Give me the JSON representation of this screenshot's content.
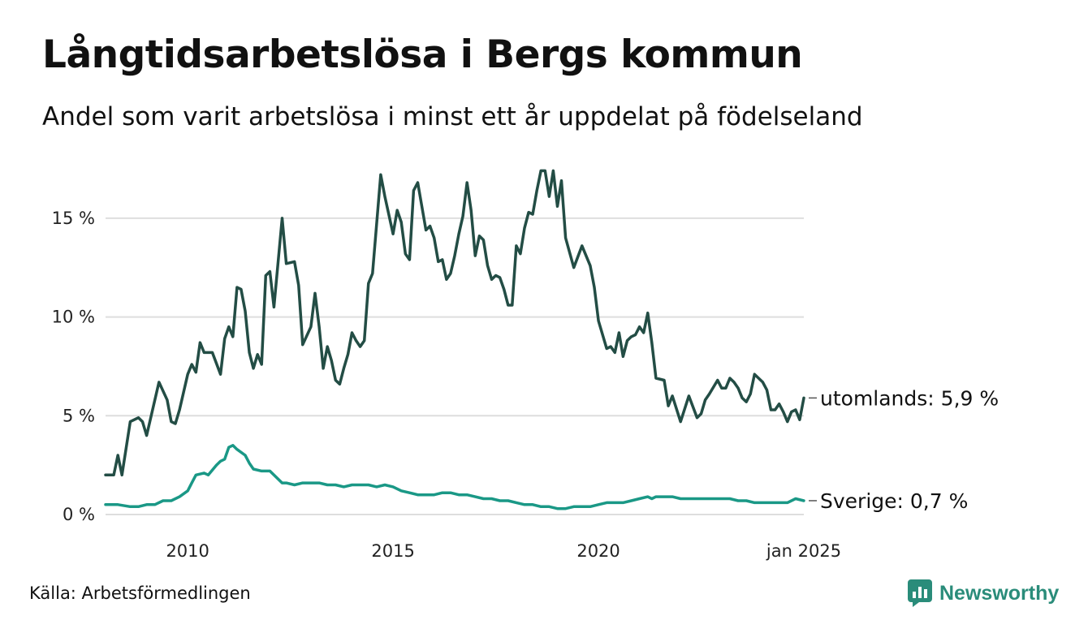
{
  "title": "Långtidsarbetslösa i Bergs kommun",
  "subtitle": "Andel som varit arbetslösa i minst ett år uppdelat på födelseland",
  "source": "Källa: Arbetsförmedlingen",
  "brand": {
    "name": "Newsworthy",
    "logo_icon": "newsworthy-logo-icon",
    "color": "#2a8c7a"
  },
  "chart_data": {
    "type": "line",
    "y_ticks": [
      {
        "value": 0,
        "label": "0 %"
      },
      {
        "value": 5,
        "label": "5 %"
      },
      {
        "value": 10,
        "label": "10 %"
      },
      {
        "value": 15,
        "label": "15 %"
      }
    ],
    "x_ticks": [
      {
        "value": 2010,
        "label": "2010"
      },
      {
        "value": 2015,
        "label": "2015"
      },
      {
        "value": 2020,
        "label": "2020"
      },
      {
        "value": 2025,
        "label": "jan 2025"
      }
    ],
    "xlim": [
      2008.0,
      2025.0
    ],
    "ylim": [
      0,
      17.5
    ],
    "grid": true,
    "series": [
      {
        "name": "utomlands",
        "end_label": "utomlands: 5,9 %",
        "color": "#234d45",
        "points": [
          [
            2008.0,
            2.0
          ],
          [
            2008.2,
            2.0
          ],
          [
            2008.3,
            3.0
          ],
          [
            2008.4,
            2.0
          ],
          [
            2008.6,
            4.7
          ],
          [
            2008.8,
            4.9
          ],
          [
            2008.9,
            4.7
          ],
          [
            2009.0,
            4.0
          ],
          [
            2009.3,
            6.7
          ],
          [
            2009.5,
            5.8
          ],
          [
            2009.6,
            4.7
          ],
          [
            2009.7,
            4.6
          ],
          [
            2009.8,
            5.3
          ],
          [
            2010.0,
            7.1
          ],
          [
            2010.1,
            7.6
          ],
          [
            2010.2,
            7.2
          ],
          [
            2010.3,
            8.7
          ],
          [
            2010.4,
            8.2
          ],
          [
            2010.6,
            8.2
          ],
          [
            2010.8,
            7.1
          ],
          [
            2010.9,
            8.9
          ],
          [
            2011.0,
            9.5
          ],
          [
            2011.1,
            9.0
          ],
          [
            2011.2,
            11.5
          ],
          [
            2011.3,
            11.4
          ],
          [
            2011.4,
            10.3
          ],
          [
            2011.5,
            8.2
          ],
          [
            2011.6,
            7.4
          ],
          [
            2011.7,
            8.1
          ],
          [
            2011.8,
            7.6
          ],
          [
            2011.9,
            12.1
          ],
          [
            2012.0,
            12.3
          ],
          [
            2012.1,
            10.5
          ],
          [
            2012.3,
            15.0
          ],
          [
            2012.4,
            12.7
          ],
          [
            2012.6,
            12.8
          ],
          [
            2012.7,
            11.6
          ],
          [
            2012.8,
            8.6
          ],
          [
            2013.0,
            9.5
          ],
          [
            2013.1,
            11.2
          ],
          [
            2013.2,
            9.5
          ],
          [
            2013.3,
            7.4
          ],
          [
            2013.4,
            8.5
          ],
          [
            2013.5,
            7.8
          ],
          [
            2013.6,
            6.8
          ],
          [
            2013.7,
            6.6
          ],
          [
            2013.8,
            7.4
          ],
          [
            2013.9,
            8.1
          ],
          [
            2014.0,
            9.2
          ],
          [
            2014.1,
            8.8
          ],
          [
            2014.2,
            8.5
          ],
          [
            2014.3,
            8.8
          ],
          [
            2014.4,
            11.7
          ],
          [
            2014.5,
            12.2
          ],
          [
            2014.7,
            17.2
          ],
          [
            2014.8,
            16.1
          ],
          [
            2015.0,
            14.2
          ],
          [
            2015.1,
            15.4
          ],
          [
            2015.2,
            14.8
          ],
          [
            2015.3,
            13.2
          ],
          [
            2015.4,
            12.9
          ],
          [
            2015.5,
            16.4
          ],
          [
            2015.6,
            16.8
          ],
          [
            2015.8,
            14.4
          ],
          [
            2015.9,
            14.6
          ],
          [
            2016.0,
            14.0
          ],
          [
            2016.1,
            12.8
          ],
          [
            2016.2,
            12.9
          ],
          [
            2016.3,
            11.9
          ],
          [
            2016.4,
            12.2
          ],
          [
            2016.5,
            13.1
          ],
          [
            2016.6,
            14.2
          ],
          [
            2016.7,
            15.1
          ],
          [
            2016.8,
            16.8
          ],
          [
            2016.9,
            15.4
          ],
          [
            2017.0,
            13.1
          ],
          [
            2017.1,
            14.1
          ],
          [
            2017.2,
            13.9
          ],
          [
            2017.3,
            12.6
          ],
          [
            2017.4,
            11.9
          ],
          [
            2017.5,
            12.1
          ],
          [
            2017.6,
            12.0
          ],
          [
            2017.7,
            11.4
          ],
          [
            2017.8,
            10.6
          ],
          [
            2017.9,
            10.6
          ],
          [
            2018.0,
            13.6
          ],
          [
            2018.1,
            13.2
          ],
          [
            2018.2,
            14.5
          ],
          [
            2018.3,
            15.3
          ],
          [
            2018.4,
            15.2
          ],
          [
            2018.5,
            16.4
          ],
          [
            2018.6,
            17.4
          ],
          [
            2018.7,
            17.4
          ],
          [
            2018.8,
            16.1
          ],
          [
            2018.9,
            17.4
          ],
          [
            2019.0,
            15.6
          ],
          [
            2019.1,
            16.9
          ],
          [
            2019.2,
            14.0
          ],
          [
            2019.4,
            12.5
          ],
          [
            2019.6,
            13.6
          ],
          [
            2019.8,
            12.6
          ],
          [
            2019.9,
            11.5
          ],
          [
            2020.0,
            9.8
          ],
          [
            2020.2,
            8.4
          ],
          [
            2020.3,
            8.5
          ],
          [
            2020.4,
            8.2
          ],
          [
            2020.5,
            9.2
          ],
          [
            2020.6,
            8.0
          ],
          [
            2020.7,
            8.8
          ],
          [
            2020.8,
            9.0
          ],
          [
            2020.9,
            9.1
          ],
          [
            2021.0,
            9.5
          ],
          [
            2021.1,
            9.2
          ],
          [
            2021.2,
            10.2
          ],
          [
            2021.3,
            8.7
          ],
          [
            2021.4,
            6.9
          ],
          [
            2021.6,
            6.8
          ],
          [
            2021.7,
            5.5
          ],
          [
            2021.8,
            6.0
          ],
          [
            2022.0,
            4.7
          ],
          [
            2022.2,
            6.0
          ],
          [
            2022.4,
            4.9
          ],
          [
            2022.5,
            5.1
          ],
          [
            2022.6,
            5.8
          ],
          [
            2022.7,
            6.1
          ],
          [
            2022.9,
            6.8
          ],
          [
            2023.0,
            6.4
          ],
          [
            2023.1,
            6.4
          ],
          [
            2023.2,
            6.9
          ],
          [
            2023.3,
            6.7
          ],
          [
            2023.4,
            6.4
          ],
          [
            2023.5,
            5.9
          ],
          [
            2023.6,
            5.7
          ],
          [
            2023.7,
            6.1
          ],
          [
            2023.8,
            7.1
          ],
          [
            2024.0,
            6.7
          ],
          [
            2024.1,
            6.3
          ],
          [
            2024.2,
            5.3
          ],
          [
            2024.3,
            5.3
          ],
          [
            2024.4,
            5.6
          ],
          [
            2024.5,
            5.2
          ],
          [
            2024.6,
            4.7
          ],
          [
            2024.7,
            5.2
          ],
          [
            2024.8,
            5.3
          ],
          [
            2024.9,
            4.8
          ],
          [
            2025.0,
            5.9
          ]
        ]
      },
      {
        "name": "Sverige",
        "end_label": "Sverige: 0,7 %",
        "color": "#1a9886",
        "points": [
          [
            2008.0,
            0.5
          ],
          [
            2008.3,
            0.5
          ],
          [
            2008.6,
            0.4
          ],
          [
            2008.8,
            0.4
          ],
          [
            2009.0,
            0.5
          ],
          [
            2009.2,
            0.5
          ],
          [
            2009.4,
            0.7
          ],
          [
            2009.6,
            0.7
          ],
          [
            2009.8,
            0.9
          ],
          [
            2010.0,
            1.2
          ],
          [
            2010.1,
            1.6
          ],
          [
            2010.2,
            2.0
          ],
          [
            2010.4,
            2.1
          ],
          [
            2010.5,
            2.0
          ],
          [
            2010.7,
            2.5
          ],
          [
            2010.8,
            2.7
          ],
          [
            2010.9,
            2.8
          ],
          [
            2011.0,
            3.4
          ],
          [
            2011.1,
            3.5
          ],
          [
            2011.2,
            3.3
          ],
          [
            2011.4,
            3.0
          ],
          [
            2011.5,
            2.6
          ],
          [
            2011.6,
            2.3
          ],
          [
            2011.8,
            2.2
          ],
          [
            2012.0,
            2.2
          ],
          [
            2012.1,
            2.0
          ],
          [
            2012.3,
            1.6
          ],
          [
            2012.4,
            1.6
          ],
          [
            2012.6,
            1.5
          ],
          [
            2012.8,
            1.6
          ],
          [
            2013.0,
            1.6
          ],
          [
            2013.2,
            1.6
          ],
          [
            2013.4,
            1.5
          ],
          [
            2013.6,
            1.5
          ],
          [
            2013.8,
            1.4
          ],
          [
            2014.0,
            1.5
          ],
          [
            2014.2,
            1.5
          ],
          [
            2014.4,
            1.5
          ],
          [
            2014.6,
            1.4
          ],
          [
            2014.8,
            1.5
          ],
          [
            2015.0,
            1.4
          ],
          [
            2015.2,
            1.2
          ],
          [
            2015.4,
            1.1
          ],
          [
            2015.6,
            1.0
          ],
          [
            2015.8,
            1.0
          ],
          [
            2016.0,
            1.0
          ],
          [
            2016.2,
            1.1
          ],
          [
            2016.4,
            1.1
          ],
          [
            2016.6,
            1.0
          ],
          [
            2016.8,
            1.0
          ],
          [
            2017.0,
            0.9
          ],
          [
            2017.2,
            0.8
          ],
          [
            2017.4,
            0.8
          ],
          [
            2017.6,
            0.7
          ],
          [
            2017.8,
            0.7
          ],
          [
            2018.0,
            0.6
          ],
          [
            2018.2,
            0.5
          ],
          [
            2018.4,
            0.5
          ],
          [
            2018.6,
            0.4
          ],
          [
            2018.8,
            0.4
          ],
          [
            2019.0,
            0.3
          ],
          [
            2019.2,
            0.3
          ],
          [
            2019.4,
            0.4
          ],
          [
            2019.6,
            0.4
          ],
          [
            2019.8,
            0.4
          ],
          [
            2020.0,
            0.5
          ],
          [
            2020.2,
            0.6
          ],
          [
            2020.4,
            0.6
          ],
          [
            2020.6,
            0.6
          ],
          [
            2020.8,
            0.7
          ],
          [
            2021.0,
            0.8
          ],
          [
            2021.2,
            0.9
          ],
          [
            2021.3,
            0.8
          ],
          [
            2021.4,
            0.9
          ],
          [
            2021.6,
            0.9
          ],
          [
            2021.8,
            0.9
          ],
          [
            2022.0,
            0.8
          ],
          [
            2022.2,
            0.8
          ],
          [
            2022.4,
            0.8
          ],
          [
            2022.6,
            0.8
          ],
          [
            2022.8,
            0.8
          ],
          [
            2023.0,
            0.8
          ],
          [
            2023.2,
            0.8
          ],
          [
            2023.4,
            0.7
          ],
          [
            2023.6,
            0.7
          ],
          [
            2023.8,
            0.6
          ],
          [
            2024.0,
            0.6
          ],
          [
            2024.2,
            0.6
          ],
          [
            2024.4,
            0.6
          ],
          [
            2024.6,
            0.6
          ],
          [
            2024.8,
            0.8
          ],
          [
            2025.0,
            0.7
          ]
        ]
      }
    ]
  }
}
